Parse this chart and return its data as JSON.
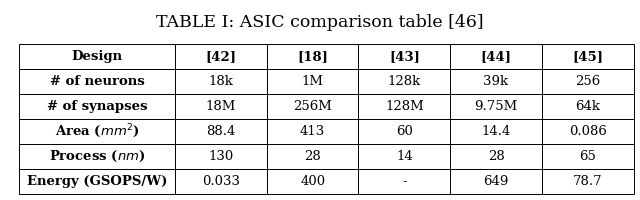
{
  "title": "TABLE I: ASIC comparison table [46]",
  "col_headers": [
    "Design",
    "[42]",
    "[18]",
    "[43]",
    "[44]",
    "[45]"
  ],
  "row_labels_plain": [
    "# of neurons",
    "# of synapses",
    "Area",
    "Process",
    "Energy (GSOPS/W)"
  ],
  "row_labels_display": [
    "# of neurons",
    "# of synapses",
    "Area ($mm^2$)",
    "Process ($nm$)",
    "Energy (GSOPS/W)"
  ],
  "table_data": [
    [
      "18k",
      "1M",
      "128k",
      "39k",
      "256"
    ],
    [
      "18M",
      "256M",
      "128M",
      "9.75M",
      "64k"
    ],
    [
      "88.4",
      "413",
      "60",
      "14.4",
      "0.086"
    ],
    [
      "130",
      "28",
      "14",
      "28",
      "65"
    ],
    [
      "0.033",
      "400",
      "-",
      "649",
      "78.7"
    ]
  ],
  "background_color": "#ffffff",
  "title_fontsize": 12.5,
  "cell_fontsize": 9.5,
  "col_widths_rel": [
    1.7,
    1.0,
    1.0,
    1.0,
    1.0,
    1.0
  ]
}
